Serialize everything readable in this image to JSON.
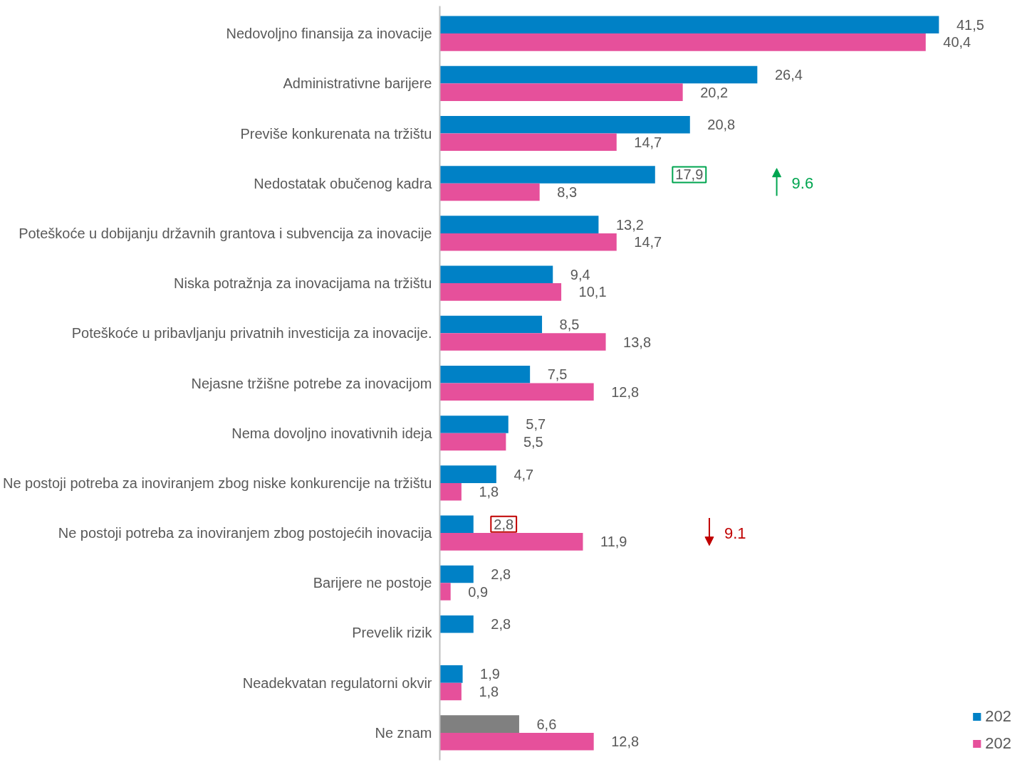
{
  "chart_data": {
    "type": "bar",
    "orientation": "horizontal",
    "legend": "bottom right",
    "grid": false,
    "tick_labels": "y",
    "categories": [
      "Nedovoljno finansija za inovacije",
      "Administrativne barijere",
      "Previše konkurenata na tržištu",
      "Nedostatak obučenog kadra",
      "Poteškoće u dobijanju državnih grantova i subvencija za inovacije",
      "Niska potražnja za inovacijama na tržištu",
      "Poteškoće u pribavljanju privatnih investicija za inovacije.",
      "Nejasne tržišne potrebe za inovacijom",
      "Nema dovoljno inovativnih ideja",
      "Ne postoji potreba za inoviranjem zbog niske konkurencije na tržištu",
      "Ne postoji potreba za inoviranjem zbog postojećih inovacija",
      "Barijere ne postoje",
      "Prevelik rizik",
      "Neadekvatan regulatorni okvir",
      "Ne znam"
    ],
    "series": [
      {
        "name": "202",
        "color": "#0081c6",
        "colors": [
          "#0081c6",
          "#0081c6",
          "#0081c6",
          "#0081c6",
          "#0081c6",
          "#0081c6",
          "#0081c6",
          "#0081c6",
          "#0081c6",
          "#0081c6",
          "#0081c6",
          "#0081c6",
          "#0081c6",
          "#0081c6",
          "#808080"
        ],
        "values": [
          41.5,
          26.4,
          20.8,
          17.9,
          13.2,
          9.4,
          8.5,
          7.5,
          5.7,
          4.7,
          2.8,
          2.8,
          2.8,
          1.9,
          6.6
        ],
        "value_labels": [
          "41,5",
          "26,4",
          "20,8",
          "17,9",
          "13,2",
          "9,4",
          "8,5",
          "7,5",
          "5,7",
          "4,7",
          "2,8",
          "2,8",
          "2,8",
          "1,9",
          "6,6"
        ]
      },
      {
        "name": "202",
        "color": "#e6509b",
        "values": [
          40.4,
          20.2,
          14.7,
          8.3,
          14.7,
          10.1,
          13.8,
          12.8,
          5.5,
          1.8,
          11.9,
          0.9,
          null,
          1.8,
          12.8
        ],
        "value_labels": [
          "40,4",
          "20,2",
          "14,7",
          "8,3",
          "14,7",
          "10,1",
          "13,8",
          "12,8",
          "5,5",
          "1,8",
          "11,9",
          "0,9",
          null,
          "1,8",
          "12,8"
        ]
      }
    ],
    "annotations": [
      "9.6",
      "9.1"
    ]
  }
}
